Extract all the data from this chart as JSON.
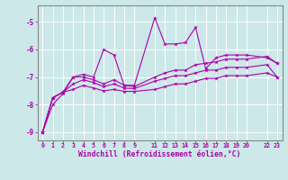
{
  "xlabel": "Windchill (Refroidissement éolien,°C)",
  "background_color": "#cce8e8",
  "line_color": "#aa00aa",
  "grid_color": "#ffffff",
  "xlim": [
    -0.5,
    23.5
  ],
  "ylim": [
    -9.3,
    -4.4
  ],
  "xticks": [
    0,
    1,
    2,
    3,
    4,
    5,
    6,
    7,
    8,
    9,
    11,
    12,
    13,
    14,
    15,
    16,
    17,
    18,
    19,
    20,
    22,
    23
  ],
  "yticks": [
    -9,
    -8,
    -7,
    -6,
    -5
  ],
  "x_all": [
    0,
    1,
    2,
    3,
    4,
    5,
    6,
    7,
    8,
    9,
    11,
    12,
    13,
    14,
    15,
    16,
    17,
    18,
    19,
    20,
    22,
    23
  ],
  "line1": [
    -9.0,
    -8.0,
    -7.6,
    -7.0,
    -6.9,
    -7.0,
    -6.0,
    -6.2,
    -7.3,
    -7.3,
    -4.85,
    -5.8,
    -5.8,
    -5.75,
    -5.2,
    -6.7,
    -6.3,
    -6.2,
    -6.2,
    -6.2,
    -6.3,
    -6.5
  ],
  "line2": [
    -9.0,
    -7.75,
    -7.55,
    -7.0,
    -7.0,
    -7.1,
    -7.25,
    -7.1,
    -7.3,
    -7.35,
    -7.0,
    -6.85,
    -6.75,
    -6.75,
    -6.55,
    -6.5,
    -6.45,
    -6.35,
    -6.35,
    -6.35,
    -6.25,
    -6.5
  ],
  "line3": [
    -9.0,
    -7.75,
    -7.55,
    -7.25,
    -7.1,
    -7.2,
    -7.35,
    -7.25,
    -7.4,
    -7.42,
    -7.15,
    -7.05,
    -6.95,
    -6.95,
    -6.85,
    -6.75,
    -6.75,
    -6.65,
    -6.65,
    -6.65,
    -6.55,
    -7.0
  ],
  "line4": [
    -9.0,
    -7.75,
    -7.55,
    -7.45,
    -7.3,
    -7.4,
    -7.5,
    -7.45,
    -7.52,
    -7.52,
    -7.45,
    -7.35,
    -7.25,
    -7.25,
    -7.15,
    -7.05,
    -7.05,
    -6.95,
    -6.95,
    -6.95,
    -6.85,
    -7.0
  ]
}
